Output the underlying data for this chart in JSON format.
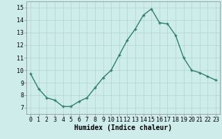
{
  "x": [
    0,
    1,
    2,
    3,
    4,
    5,
    6,
    7,
    8,
    9,
    10,
    11,
    12,
    13,
    14,
    15,
    16,
    17,
    18,
    19,
    20,
    21,
    22,
    23
  ],
  "y": [
    9.7,
    8.5,
    7.8,
    7.6,
    7.1,
    7.1,
    7.5,
    7.8,
    8.6,
    9.4,
    10.0,
    11.2,
    12.4,
    13.3,
    14.4,
    14.9,
    13.8,
    13.7,
    12.8,
    11.0,
    10.0,
    9.8,
    9.5,
    9.2
  ],
  "line_color": "#2e7d6e",
  "marker": "+",
  "marker_size": 3.5,
  "line_width": 1.0,
  "bg_color": "#ceecea",
  "grid_color": "#aed4d1",
  "xlabel": "Humidex (Indice chaleur)",
  "xlabel_fontsize": 7,
  "tick_fontsize": 6,
  "xlim": [
    -0.5,
    23.5
  ],
  "ylim": [
    6.5,
    15.5
  ],
  "yticks": [
    7,
    8,
    9,
    10,
    11,
    12,
    13,
    14,
    15
  ],
  "xticks": [
    0,
    1,
    2,
    3,
    4,
    5,
    6,
    7,
    8,
    9,
    10,
    11,
    12,
    13,
    14,
    15,
    16,
    17,
    18,
    19,
    20,
    21,
    22,
    23
  ]
}
